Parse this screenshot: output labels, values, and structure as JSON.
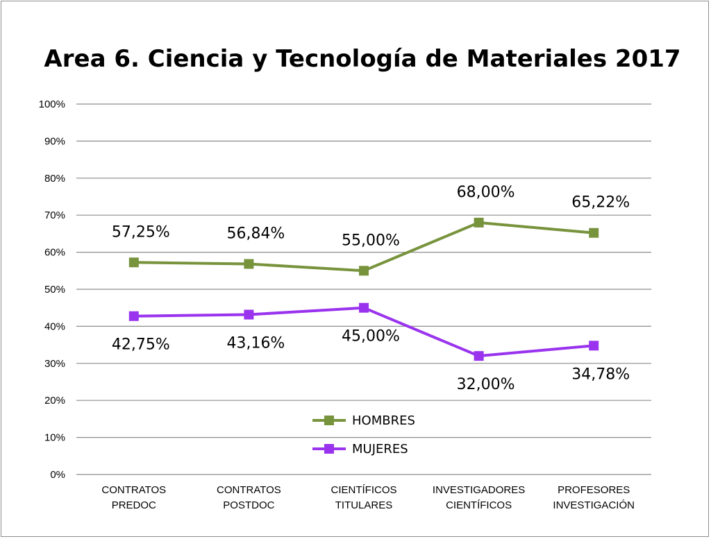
{
  "chart_data": {
    "type": "line",
    "title": "Area 6. Ciencia y Tecnología de Materiales 2017",
    "xlabel": "",
    "ylabel": "",
    "categories": [
      [
        "CONTRATOS",
        "PREDOC"
      ],
      [
        "CONTRATOS",
        "POSTDOC"
      ],
      [
        "CIENTÍFICOS",
        "TITULARES"
      ],
      [
        "INVESTIGADORES",
        "CIENTÍFICOS"
      ],
      [
        "PROFESORES",
        "INVESTIGACIÓN"
      ]
    ],
    "ylim": [
      0,
      100
    ],
    "yticks": [
      "0%",
      "10%",
      "20%",
      "30%",
      "40%",
      "50%",
      "60%",
      "70%",
      "80%",
      "90%",
      "100%"
    ],
    "grid": true,
    "legend_position": "bottom-center",
    "series": [
      {
        "name": "HOMBRES",
        "color": "#77933c",
        "values": [
          57.25,
          56.84,
          55.0,
          68.0,
          65.22
        ],
        "labels": [
          "57,25%",
          "56,84%",
          "55,00%",
          "68,00%",
          "65,22%"
        ]
      },
      {
        "name": "MUJERES",
        "color": "#9933ee",
        "values": [
          42.75,
          43.16,
          45.0,
          32.0,
          34.78
        ],
        "labels": [
          "42,75%",
          "43,16%",
          "45,00%",
          "32,00%",
          "34,78%"
        ]
      }
    ]
  }
}
